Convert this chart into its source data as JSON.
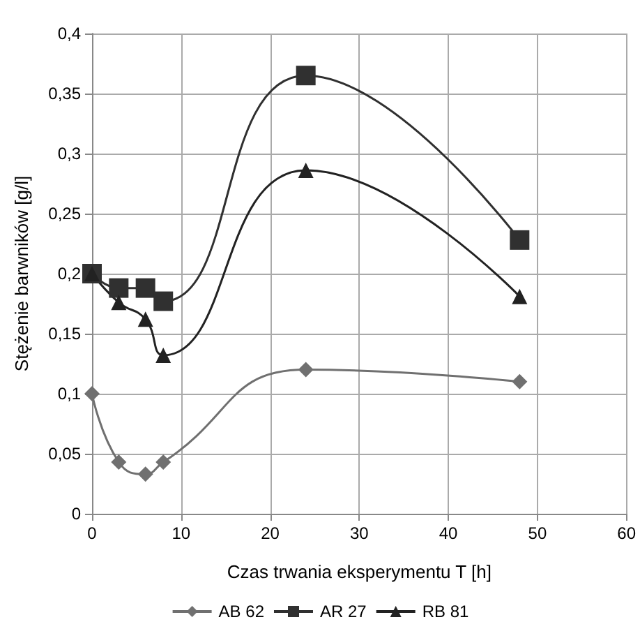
{
  "chart_data": {
    "type": "line",
    "xlabel": "Czas trwania eksperymentu T [h]",
    "ylabel": "Stężenie barwników [g/l]",
    "x": [
      0,
      3,
      6,
      8,
      24,
      48
    ],
    "series": [
      {
        "name": "AB 62",
        "color": "#707070",
        "marker": "diamond",
        "values": [
          0.1,
          0.043,
          0.033,
          0.043,
          0.12,
          0.11
        ]
      },
      {
        "name": "AR 27",
        "color": "#303030",
        "marker": "square",
        "values": [
          0.2,
          0.188,
          0.188,
          0.177,
          0.365,
          0.228
        ]
      },
      {
        "name": "RB 81",
        "color": "#222222",
        "marker": "triangle",
        "values": [
          0.2,
          0.176,
          0.162,
          0.132,
          0.286,
          0.181
        ]
      }
    ],
    "xlim": [
      0,
      60
    ],
    "xticks": [
      0,
      10,
      20,
      30,
      40,
      50,
      60
    ],
    "ylim": [
      0,
      0.4
    ],
    "yticks": [
      {
        "value": 0,
        "label": "0"
      },
      {
        "value": 0.05,
        "label": "0,05"
      },
      {
        "value": 0.1,
        "label": "0,1"
      },
      {
        "value": 0.15,
        "label": "0,15"
      },
      {
        "value": 0.2,
        "label": "0,2"
      },
      {
        "value": 0.25,
        "label": "0,25"
      },
      {
        "value": 0.3,
        "label": "0,3"
      },
      {
        "value": 0.35,
        "label": "0,35"
      },
      {
        "value": 0.4,
        "label": "0,4"
      }
    ],
    "grid": true,
    "legend": "bottom"
  }
}
